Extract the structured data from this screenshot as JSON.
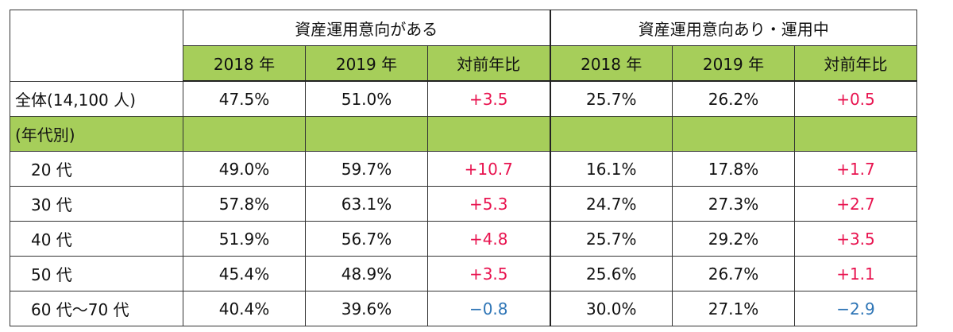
{
  "table": {
    "group_headers": [
      "資産運用意向がある",
      "資産運用意向あり・運用中"
    ],
    "sub_headers": [
      "2018 年",
      "2019 年",
      "対前年比",
      "2018 年",
      "2019 年",
      "対前年比"
    ],
    "overall": {
      "label": "全体(14,100 人)",
      "values": [
        "47.5%",
        "51.0%",
        "+3.5",
        "25.7%",
        "26.2%",
        "+0.5"
      ],
      "signs": [
        "",
        "",
        "pos",
        "",
        "",
        "pos"
      ]
    },
    "section_label": "(年代別)",
    "rows": [
      {
        "label": "20 代",
        "values": [
          "49.0%",
          "59.7%",
          "+10.7",
          "16.1%",
          "17.8%",
          "+1.7"
        ],
        "signs": [
          "",
          "",
          "pos",
          "",
          "",
          "pos"
        ]
      },
      {
        "label": "30 代",
        "values": [
          "57.8%",
          "63.1%",
          "+5.3",
          "24.7%",
          "27.3%",
          "+2.7"
        ],
        "signs": [
          "",
          "",
          "pos",
          "",
          "",
          "pos"
        ]
      },
      {
        "label": "40 代",
        "values": [
          "51.9%",
          "56.7%",
          "+4.8",
          "25.7%",
          "29.2%",
          "+3.5"
        ],
        "signs": [
          "",
          "",
          "pos",
          "",
          "",
          "pos"
        ]
      },
      {
        "label": "50 代",
        "values": [
          "45.4%",
          "48.9%",
          "+3.5",
          "25.6%",
          "26.7%",
          "+1.1"
        ],
        "signs": [
          "",
          "",
          "pos",
          "",
          "",
          "pos"
        ]
      },
      {
        "label": "60 代～70 代",
        "values": [
          "40.4%",
          "39.6%",
          "−0.8",
          "30.0%",
          "27.1%",
          "−2.9"
        ],
        "signs": [
          "",
          "",
          "neg",
          "",
          "",
          "neg"
        ]
      }
    ]
  },
  "colors": {
    "header_green": "#a6ce5a",
    "positive": "#e8134f",
    "negative": "#2e75b6"
  }
}
